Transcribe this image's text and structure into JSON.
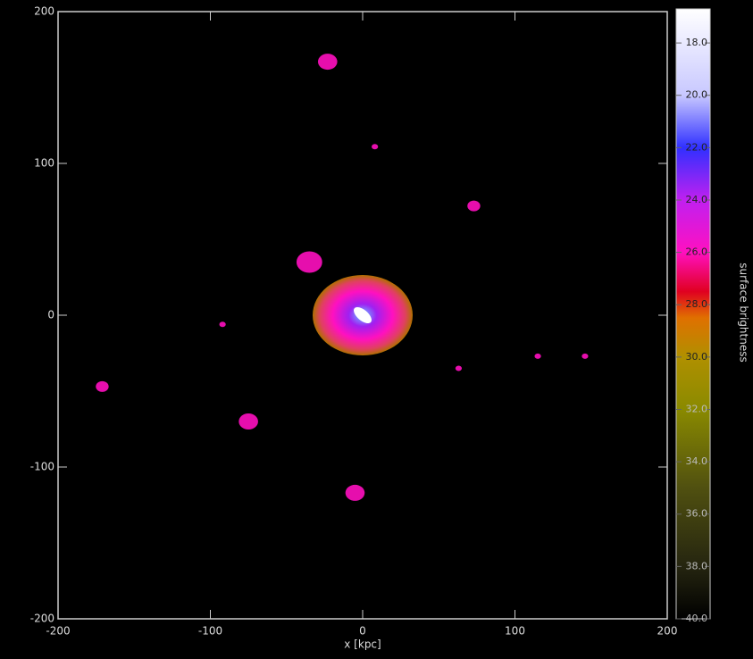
{
  "chart_data": {
    "type": "image",
    "xlabel": "x [kpc]",
    "xlim": [
      -200,
      200
    ],
    "ylim": [
      -200,
      200
    ],
    "xticks": [
      -200,
      -100,
      0,
      100,
      200
    ],
    "yticks": [
      -200,
      -100,
      0,
      100,
      200
    ],
    "colorbar_label": "surface brightness",
    "clim": [
      16.7,
      40
    ],
    "cticks": [
      {
        "value": 18,
        "label": "18.0"
      },
      {
        "value": 20,
        "label": "20.0"
      },
      {
        "value": 22,
        "label": "22.0"
      },
      {
        "value": 24,
        "label": "24.0"
      },
      {
        "value": 26,
        "label": "26.0"
      },
      {
        "value": 28,
        "label": "28.0"
      },
      {
        "value": 30,
        "label": "30.0"
      },
      {
        "value": 32,
        "label": "32.0"
      },
      {
        "value": 34,
        "label": "34.0"
      },
      {
        "value": 36,
        "label": "36.0"
      },
      {
        "value": 38,
        "label": "38.0"
      },
      {
        "value": 40,
        "label": "40.0"
      }
    ],
    "colormap": [
      {
        "value": 16.7,
        "color": "#ffffff"
      },
      {
        "value": 20,
        "color": "#c8c8ff"
      },
      {
        "value": 22,
        "color": "#3030ff"
      },
      {
        "value": 24,
        "color": "#c020f0"
      },
      {
        "value": 26,
        "color": "#ff10c0"
      },
      {
        "value": 27.5,
        "color": "#e00020"
      },
      {
        "value": 28.5,
        "color": "#e07000"
      },
      {
        "value": 30,
        "color": "#b09000"
      },
      {
        "value": 32,
        "color": "#8a8a00"
      },
      {
        "value": 35,
        "color": "#505010"
      },
      {
        "value": 38,
        "color": "#252510"
      },
      {
        "value": 40,
        "color": "#000000"
      }
    ],
    "sources": [
      {
        "x": -23,
        "y": 167,
        "r": 3
      },
      {
        "x": -35,
        "y": 35,
        "r": 4
      },
      {
        "x": 73,
        "y": 72,
        "r": 2
      },
      {
        "x": -171,
        "y": -47,
        "r": 2
      },
      {
        "x": -75,
        "y": -70,
        "r": 3
      },
      {
        "x": -5,
        "y": -117,
        "r": 3
      },
      {
        "x": 63,
        "y": -35,
        "r": 1
      },
      {
        "x": 115,
        "y": -27,
        "r": 1
      },
      {
        "x": 146,
        "y": -27,
        "r": 1
      },
      {
        "x": -92,
        "y": -6,
        "r": 1
      },
      {
        "x": 8,
        "y": 111,
        "r": 1
      }
    ]
  }
}
